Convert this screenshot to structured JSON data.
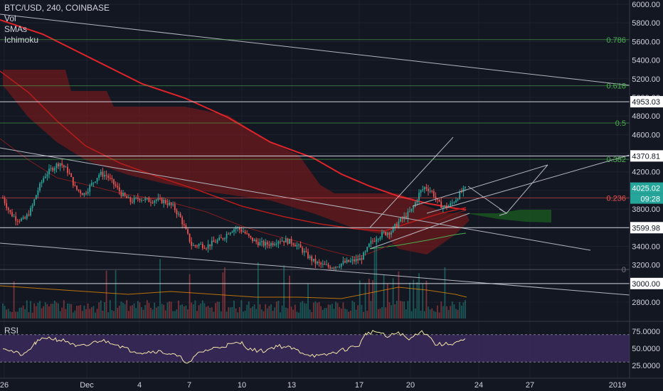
{
  "legend": {
    "title": "BTC/USD, 240, COINBASE",
    "vol": "Vol",
    "smas": "SMAs",
    "ichimoku": "Ichimoku"
  },
  "rsi_panel": {
    "label": "RSI"
  },
  "price_axis": {
    "ticks": [
      "6000.00",
      "5800.00",
      "5600.00",
      "5400.00",
      "5200.00",
      "5000.00",
      "4800.00",
      "4600.00",
      "4400.00",
      "4200.00",
      "4000.00",
      "3800.00",
      "3600.00",
      "3400.00",
      "3200.00",
      "3000.00",
      "2800.00"
    ],
    "badges": [
      {
        "value": 4953.03,
        "text": "4953.03",
        "style": "white"
      },
      {
        "value": 4370.81,
        "text": "4370.81",
        "style": "white"
      },
      {
        "value": 4025.02,
        "text": "4025.02",
        "style": "green"
      },
      {
        "value": 3599.98,
        "text": "3599.98",
        "style": "white"
      },
      {
        "value": 3000.0,
        "text": "3000.00",
        "style": "white"
      }
    ],
    "countdown": "09:28"
  },
  "rsi_axis": {
    "ticks": [
      "75.0000",
      "50.0000",
      "25.0000"
    ]
  },
  "time_axis": {
    "ticks": [
      "26",
      "Dec",
      "4",
      "7",
      "10",
      "13",
      "17",
      "20",
      "24",
      "27",
      "2019"
    ]
  },
  "fib_levels": [
    {
      "label": "0.786",
      "price": 5620
    },
    {
      "label": "0.618",
      "price": 5125
    },
    {
      "label": "0.5",
      "price": 4725
    },
    {
      "label": "0.382",
      "price": 4334
    },
    {
      "label": "0.236",
      "price": 3920
    },
    {
      "label": "0",
      "price": 3150
    }
  ],
  "horizontal_levels": [
    4953.03,
    4370.81,
    3599.98,
    3000.0
  ],
  "colors": {
    "background": "#131722",
    "up": "#26a69a",
    "down": "#ef5350",
    "cloud_bear": "#8b1a1a",
    "cloud_bull": "#1b5e20",
    "sma_red": "#e0242a",
    "fib": "#4caf50",
    "rsi_band": "#3b2a5c",
    "rsi_line": "#f5e6a8"
  },
  "chart_data": {
    "type": "candlestick",
    "symbol": "BTC/USD",
    "interval": "240",
    "exchange": "COINBASE",
    "ylim": [
      2650,
      6050
    ],
    "rsi_ylim": [
      15,
      85
    ],
    "rsi_overbought": 70,
    "rsi_oversold": 30,
    "current_price": 4025.02
  }
}
